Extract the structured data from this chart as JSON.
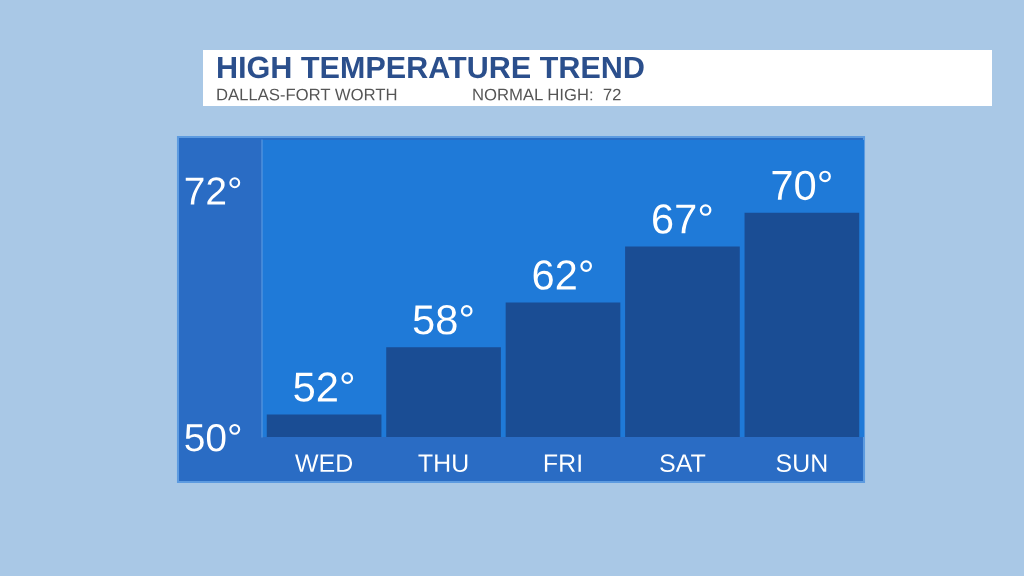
{
  "chart_data": {
    "type": "bar",
    "title": "HIGH TEMPERATURE TREND",
    "subtitle": "DALLAS-FORT WORTH",
    "annotations": [
      "NORMAL HIGH:  72"
    ],
    "categories": [
      "WED",
      "THU",
      "FRI",
      "SAT",
      "SUN"
    ],
    "values": [
      52,
      58,
      62,
      67,
      70
    ],
    "value_labels": [
      "52°",
      "58°",
      "62°",
      "67°",
      "70°"
    ],
    "color": "#1a4d94",
    "ylim": [
      50,
      76.5
    ],
    "yticks": [
      {
        "value": 50,
        "label": "50°"
      },
      {
        "value": 72,
        "label": "72°"
      }
    ],
    "legend": false
  }
}
